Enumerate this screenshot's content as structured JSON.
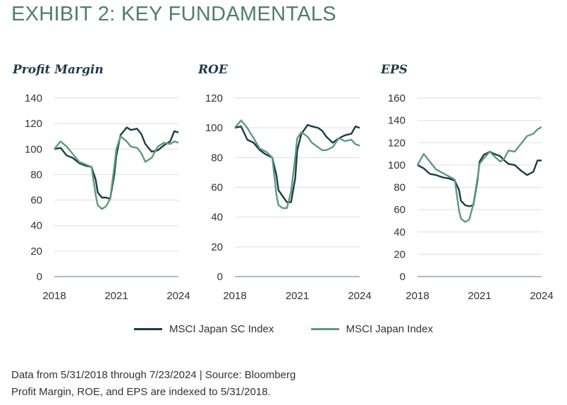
{
  "title": "EXHIBIT 2: KEY FUNDAMENTALS",
  "colors": {
    "title": "#4f7f6c",
    "series_sc": "#1b3a4b",
    "series_japan": "#5b9a7d"
  },
  "legend": [
    {
      "label": "MSCI Japan SC Index",
      "color": "#1b3a4b"
    },
    {
      "label": "MSCI Japan Index",
      "color": "#5b9a7d"
    }
  ],
  "notes": [
    "Data from 5/31/2018 through 7/23/2024 | Source: Bloomberg",
    "Profit Margin, ROE, and EPS are indexed to 5/31/2018."
  ],
  "chart_data": [
    {
      "type": "line",
      "title": "Profit Margin",
      "xlim": [
        2018,
        2024
      ],
      "xticks": [
        "2018",
        "2021",
        "2024"
      ],
      "ylim": [
        0,
        140
      ],
      "yticks": [
        0,
        20,
        40,
        60,
        80,
        100,
        120,
        140
      ],
      "grid": true,
      "series": [
        {
          "name": "MSCI Japan SC Index",
          "color": "#1b3a4b",
          "x": [
            2018.0,
            2018.3,
            2018.6,
            2018.9,
            2019.2,
            2019.5,
            2019.8,
            2020.0,
            2020.1,
            2020.3,
            2020.5,
            2020.7,
            2020.9,
            2021.0,
            2021.2,
            2021.5,
            2021.7,
            2022.0,
            2022.2,
            2022.4,
            2022.7,
            2023.0,
            2023.3,
            2023.6,
            2023.8,
            2024.0
          ],
          "y": [
            100,
            101,
            95,
            93,
            89,
            87,
            86,
            76,
            66,
            62,
            62,
            61,
            80,
            95,
            111,
            117,
            115,
            116,
            112,
            104,
            98,
            99,
            103,
            106,
            114,
            113
          ]
        },
        {
          "name": "MSCI Japan Index",
          "color": "#5b9a7d",
          "x": [
            2018.0,
            2018.3,
            2018.6,
            2018.9,
            2019.2,
            2019.5,
            2019.8,
            2020.0,
            2020.1,
            2020.3,
            2020.5,
            2020.7,
            2020.9,
            2021.0,
            2021.2,
            2021.5,
            2021.7,
            2022.0,
            2022.2,
            2022.4,
            2022.7,
            2023.0,
            2023.3,
            2023.6,
            2023.8,
            2024.0
          ],
          "y": [
            100,
            106,
            102,
            96,
            90,
            88,
            86,
            64,
            56,
            53,
            55,
            61,
            86,
            100,
            110,
            106,
            102,
            101,
            97,
            90,
            93,
            102,
            105,
            104,
            106,
            105
          ]
        }
      ]
    },
    {
      "type": "line",
      "title": "ROE",
      "xlim": [
        2018,
        2024
      ],
      "xticks": [
        "2018",
        "2021",
        "2024"
      ],
      "ylim": [
        0,
        120
      ],
      "yticks": [
        0,
        20,
        40,
        60,
        80,
        100,
        120
      ],
      "grid": true,
      "series": [
        {
          "name": "MSCI Japan SC Index",
          "color": "#1b3a4b",
          "x": [
            2018.0,
            2018.3,
            2018.6,
            2018.9,
            2019.2,
            2019.5,
            2019.8,
            2020.0,
            2020.1,
            2020.3,
            2020.5,
            2020.7,
            2020.9,
            2021.0,
            2021.2,
            2021.5,
            2021.7,
            2022.0,
            2022.2,
            2022.4,
            2022.7,
            2023.0,
            2023.3,
            2023.6,
            2023.8,
            2024.0
          ],
          "y": [
            100,
            101,
            92,
            90,
            85,
            82,
            80,
            68,
            58,
            54,
            50,
            50,
            66,
            85,
            96,
            102,
            101,
            100,
            98,
            94,
            90,
            93,
            95,
            96,
            101,
            100
          ]
        },
        {
          "name": "MSCI Japan Index",
          "color": "#5b9a7d",
          "x": [
            2018.0,
            2018.3,
            2018.6,
            2018.9,
            2019.2,
            2019.5,
            2019.8,
            2020.0,
            2020.1,
            2020.3,
            2020.5,
            2020.7,
            2020.9,
            2021.0,
            2021.2,
            2021.5,
            2021.7,
            2022.0,
            2022.2,
            2022.4,
            2022.7,
            2023.0,
            2023.3,
            2023.6,
            2023.8,
            2024.0
          ],
          "y": [
            100,
            105,
            100,
            93,
            86,
            84,
            80,
            55,
            48,
            46,
            46,
            57,
            80,
            93,
            97,
            94,
            90,
            87,
            85,
            85,
            87,
            93,
            91,
            92,
            89,
            88
          ]
        }
      ]
    },
    {
      "type": "line",
      "title": "EPS",
      "xlim": [
        2018,
        2024
      ],
      "xticks": [
        "2018",
        "2021",
        "2024"
      ],
      "ylim": [
        0,
        160
      ],
      "yticks": [
        0,
        20,
        40,
        60,
        80,
        100,
        120,
        140,
        160
      ],
      "grid": true,
      "series": [
        {
          "name": "MSCI Japan SC Index",
          "color": "#1b3a4b",
          "x": [
            2018.0,
            2018.3,
            2018.6,
            2018.9,
            2019.2,
            2019.5,
            2019.8,
            2020.0,
            2020.1,
            2020.3,
            2020.5,
            2020.7,
            2020.9,
            2021.0,
            2021.2,
            2021.5,
            2021.7,
            2022.0,
            2022.2,
            2022.4,
            2022.7,
            2023.0,
            2023.3,
            2023.6,
            2023.8,
            2024.0
          ],
          "y": [
            100,
            97,
            92,
            91,
            89,
            88,
            86,
            78,
            68,
            64,
            63,
            64,
            86,
            103,
            109,
            112,
            110,
            108,
            104,
            101,
            100,
            95,
            91,
            94,
            104,
            104
          ]
        },
        {
          "name": "MSCI Japan Index",
          "color": "#5b9a7d",
          "x": [
            2018.0,
            2018.3,
            2018.6,
            2018.9,
            2019.2,
            2019.5,
            2019.8,
            2020.0,
            2020.1,
            2020.3,
            2020.5,
            2020.7,
            2020.9,
            2021.0,
            2021.2,
            2021.5,
            2021.7,
            2022.0,
            2022.2,
            2022.4,
            2022.7,
            2023.0,
            2023.3,
            2023.6,
            2023.8,
            2024.0
          ],
          "y": [
            100,
            110,
            103,
            96,
            93,
            90,
            87,
            60,
            52,
            49,
            51,
            65,
            88,
            101,
            106,
            112,
            108,
            103,
            106,
            113,
            112,
            119,
            126,
            128,
            132,
            134
          ]
        }
      ]
    }
  ]
}
